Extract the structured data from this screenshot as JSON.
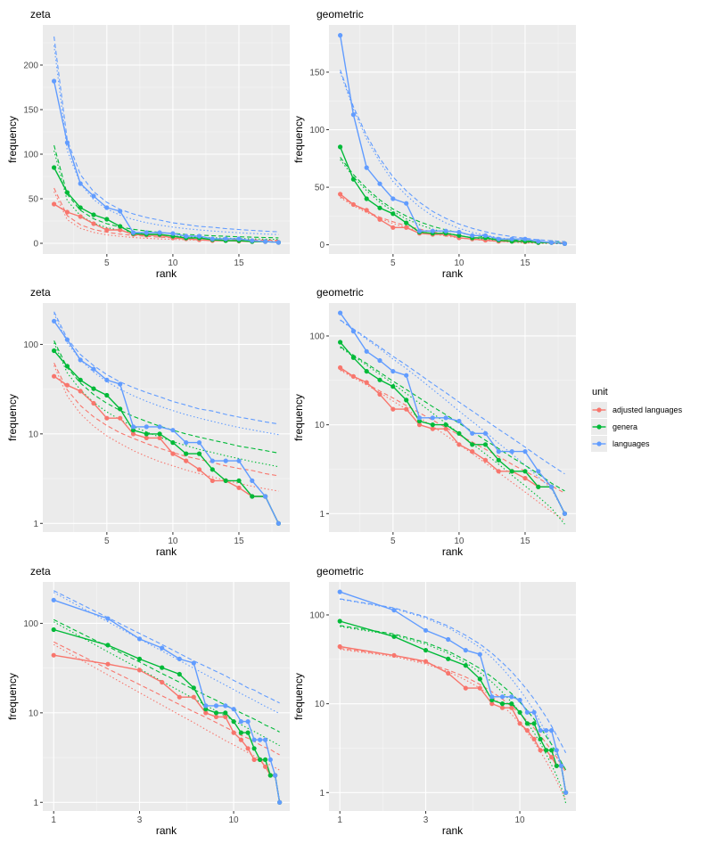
{
  "chart_data": {
    "type": "line",
    "legend": {
      "title": "unit",
      "placement": "right",
      "entries": [
        {
          "key": "adjusted",
          "label": "adjusted languages",
          "color": "#F8766D"
        },
        {
          "key": "genera",
          "label": "genera",
          "color": "#00BA38"
        },
        {
          "key": "languages",
          "label": "languages",
          "color": "#619CFF"
        }
      ]
    },
    "observed": {
      "rank": [
        1,
        2,
        3,
        4,
        5,
        6,
        7,
        8,
        9,
        10,
        11,
        12,
        13,
        14,
        15,
        16,
        17,
        18
      ],
      "languages": [
        182,
        113,
        67,
        53,
        40,
        36,
        12,
        12,
        12,
        11,
        8,
        8,
        5,
        5,
        5,
        3,
        2,
        1
      ],
      "genera": [
        85,
        57,
        40,
        32,
        27,
        19,
        11,
        10,
        10,
        8,
        6,
        6,
        4,
        3,
        3,
        2,
        2,
        1
      ],
      "adjusted": [
        44,
        35,
        30,
        22,
        15,
        15,
        10,
        9,
        9,
        6,
        5,
        4,
        3,
        3,
        2.5,
        2,
        2,
        1
      ]
    },
    "fitted": {
      "zeta": {
        "dashed": {
          "languages": [
            232,
            116,
            77,
            58,
            46,
            38,
            33,
            29,
            26,
            23,
            21,
            19,
            18,
            16.5,
            15.4,
            14.5,
            13.6,
            12.9
          ],
          "genera": [
            110,
            55,
            37,
            27.5,
            22,
            18.3,
            15.7,
            13.8,
            12.2,
            11,
            10,
            9.2,
            8.5,
            7.9,
            7.3,
            6.9,
            6.5,
            6.1
          ],
          "adjusted": [
            62,
            31,
            20.7,
            15.5,
            12.4,
            10.3,
            8.9,
            7.8,
            6.9,
            6.2,
            5.6,
            5.2,
            4.8,
            4.4,
            4.1,
            3.9,
            3.6,
            3.4
          ]
        },
        "dotted": {
          "languages": [
            222,
            104,
            67,
            49,
            38.5,
            31.5,
            26.7,
            23.1,
            20.4,
            18.2,
            16.4,
            15,
            13.8,
            12.7,
            11.8,
            11.1,
            10.4,
            9.8
          ],
          "genera": [
            104,
            48,
            31,
            22.5,
            17.6,
            14.4,
            12.1,
            10.5,
            9.2,
            8.2,
            7.4,
            6.7,
            6.2,
            5.7,
            5.3,
            4.9,
            4.6,
            4.3
          ],
          "adjusted": [
            58,
            26.5,
            16.8,
            12.2,
            9.5,
            7.8,
            6.5,
            5.6,
            4.9,
            4.4,
            3.95,
            3.6,
            3.3,
            3.03,
            2.8,
            2.6,
            2.44,
            2.29
          ]
        }
      },
      "geometric": {
        "dashed": {
          "languages": [
            152,
            120,
            95,
            75,
            59,
            47,
            37,
            29,
            23,
            18,
            14.3,
            11.3,
            8.9,
            7.1,
            5.6,
            4.4,
            3.5,
            2.8
          ],
          "genera": [
            76,
            61,
            49,
            39,
            31,
            25,
            20,
            16,
            13,
            10.4,
            8.4,
            6.7,
            5.4,
            4.3,
            3.5,
            2.8,
            2.2,
            1.8
          ],
          "adjusted": [
            42,
            35,
            29,
            24,
            20,
            16.5,
            13.6,
            11.3,
            9.3,
            7.7,
            6.4,
            5.3,
            4.4,
            3.6,
            3,
            2.5,
            2.05,
            1.7
          ]
        },
        "dotted": {
          "languages": [
            150,
            118,
            92,
            72,
            55,
            43,
            33,
            25,
            19,
            14.3,
            10.9,
            8.3,
            6.2,
            4.7,
            3.5,
            2.6,
            1.9,
            1.0
          ],
          "genera": [
            74,
            59,
            47,
            37,
            29,
            22.5,
            17.5,
            13.5,
            10.4,
            8,
            6.1,
            4.7,
            3.6,
            2.7,
            2.05,
            1.55,
            1.15,
            0.76
          ],
          "adjusted": [
            41,
            34,
            28,
            23,
            18.5,
            15,
            12,
            9.6,
            7.6,
            6,
            4.75,
            3.7,
            2.9,
            2.25,
            1.75,
            1.35,
            1.05,
            0.84
          ]
        }
      }
    },
    "panels": [
      {
        "title": "zeta",
        "model": "zeta",
        "xscale": "linear",
        "yscale": "linear",
        "xlabel": "rank",
        "ylabel": "frequency",
        "xlim": [
          0.15,
          18.85
        ],
        "ylim": [
          -12,
          245
        ],
        "xticks": [
          5,
          10,
          15
        ],
        "xtick_labels": [
          "5",
          "10",
          "15"
        ],
        "yticks": [
          0,
          50,
          100,
          150,
          200
        ],
        "ytick_labels": [
          "0",
          "50",
          "100",
          "150",
          "200"
        ]
      },
      {
        "title": "geometric",
        "model": "geometric",
        "xscale": "linear",
        "yscale": "linear",
        "xlabel": "rank",
        "ylabel": "frequency",
        "xlim": [
          0.15,
          18.85
        ],
        "ylim": [
          -8,
          191
        ],
        "xticks": [
          5,
          10,
          15
        ],
        "xtick_labels": [
          "5",
          "10",
          "15"
        ],
        "yticks": [
          0,
          50,
          100,
          150
        ],
        "ytick_labels": [
          "0",
          "50",
          "100",
          "150"
        ]
      },
      {
        "title": "zeta",
        "model": "zeta",
        "xscale": "linear",
        "yscale": "log",
        "xlabel": "rank",
        "ylabel": "frequency",
        "xlim": [
          0.15,
          18.85
        ],
        "ylim": [
          0.8,
          290
        ],
        "xticks": [
          5,
          10,
          15
        ],
        "xtick_labels": [
          "5",
          "10",
          "15"
        ],
        "yticks": [
          1,
          10,
          100
        ],
        "ytick_labels": [
          "1",
          "10",
          "100"
        ]
      },
      {
        "title": "geometric",
        "model": "geometric",
        "xscale": "linear",
        "yscale": "log",
        "xlabel": "rank",
        "ylabel": "frequency",
        "xlim": [
          0.15,
          18.85
        ],
        "ylim": [
          0.62,
          235
        ],
        "xticks": [
          5,
          10,
          15
        ],
        "xtick_labels": [
          "5",
          "10",
          "15"
        ],
        "yticks": [
          1,
          10,
          100
        ],
        "ytick_labels": [
          "1",
          "10",
          "100"
        ]
      },
      {
        "title": "zeta",
        "model": "zeta",
        "xscale": "log",
        "yscale": "log",
        "xlabel": "rank",
        "ylabel": "frequency",
        "xlim": [
          0.87,
          20.5
        ],
        "ylim": [
          0.8,
          290
        ],
        "xticks": [
          1,
          3,
          10
        ],
        "xtick_labels": [
          "1",
          "3",
          "10"
        ],
        "yticks": [
          1,
          10,
          100
        ],
        "ytick_labels": [
          "1",
          "10",
          "100"
        ]
      },
      {
        "title": "geometric",
        "model": "geometric",
        "xscale": "log",
        "yscale": "log",
        "xlabel": "rank",
        "ylabel": "frequency",
        "xlim": [
          0.87,
          20.5
        ],
        "ylim": [
          0.62,
          235
        ],
        "xticks": [
          1,
          3,
          10
        ],
        "xtick_labels": [
          "1",
          "3",
          "10"
        ],
        "yticks": [
          1,
          10,
          100
        ],
        "ytick_labels": [
          "1",
          "10",
          "100"
        ]
      }
    ]
  }
}
